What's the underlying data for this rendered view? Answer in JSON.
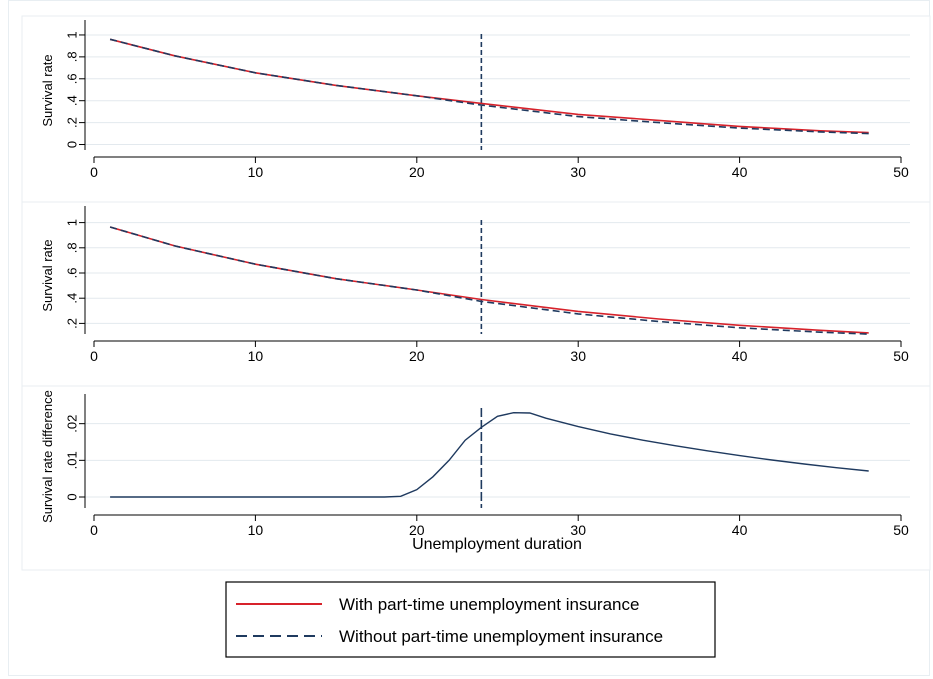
{
  "colors": {
    "with_series": "#d7222b",
    "without_series": "#1f3a5f",
    "vline": "#1f3a5f",
    "grid": "#e3e9ee",
    "panel_border": "#e8eef2"
  },
  "x_axis_title": "Unemployment duration",
  "legend": {
    "entries": [
      {
        "label": "With part-time unemployment insurance",
        "style": "solid",
        "color": "#d7222b"
      },
      {
        "label": "Without part-time unemployment insurance",
        "style": "dashed",
        "color": "#1f3a5f"
      }
    ]
  },
  "chart_data": [
    {
      "type": "line",
      "ylabel": "Survival rate",
      "xlim": [
        0,
        50
      ],
      "ylim": [
        -0.05,
        1.1
      ],
      "x_ticks": [
        0,
        10,
        20,
        30,
        40,
        50
      ],
      "y_ticks": [
        0,
        0.2,
        0.4,
        0.6,
        0.8,
        1
      ],
      "y_tick_labels": [
        "0",
        ".2",
        ".4",
        ".6",
        ".8",
        "1"
      ],
      "vline_x": 24,
      "x": [
        1,
        5,
        10,
        15,
        20,
        24,
        30,
        35,
        40,
        45,
        48
      ],
      "series": [
        {
          "name": "With part-time unemployment insurance",
          "values": [
            0.96,
            0.81,
            0.655,
            0.54,
            0.445,
            0.375,
            0.275,
            0.22,
            0.165,
            0.125,
            0.11
          ]
        },
        {
          "name": "Without part-time unemployment insurance",
          "values": [
            0.96,
            0.81,
            0.655,
            0.54,
            0.445,
            0.36,
            0.255,
            0.2,
            0.15,
            0.115,
            0.1
          ]
        }
      ],
      "grid": true
    },
    {
      "type": "line",
      "ylabel": "Survival rate",
      "xlim": [
        0,
        50
      ],
      "ylim": [
        0.1,
        1.1
      ],
      "x_ticks": [
        0,
        10,
        20,
        30,
        40,
        50
      ],
      "y_ticks": [
        0.2,
        0.4,
        0.6,
        0.8,
        1
      ],
      "y_tick_labels": [
        ".2",
        ".4",
        ".6",
        ".8",
        "1"
      ],
      "vline_x": 24,
      "x": [
        1,
        5,
        10,
        15,
        20,
        24,
        30,
        35,
        40,
        45,
        48
      ],
      "series": [
        {
          "name": "With part-time unemployment insurance",
          "values": [
            0.965,
            0.815,
            0.67,
            0.555,
            0.465,
            0.39,
            0.295,
            0.235,
            0.185,
            0.145,
            0.125
          ]
        },
        {
          "name": "Without part-time unemployment insurance",
          "values": [
            0.965,
            0.815,
            0.67,
            0.555,
            0.465,
            0.375,
            0.275,
            0.215,
            0.165,
            0.13,
            0.115
          ]
        }
      ],
      "grid": true
    },
    {
      "type": "line",
      "ylabel": "Survival rate difference",
      "xlim": [
        0,
        50
      ],
      "ylim": [
        -0.003,
        0.027
      ],
      "x_ticks": [
        0,
        10,
        20,
        30,
        40,
        50
      ],
      "y_ticks": [
        0,
        0.01,
        0.02
      ],
      "y_tick_labels": [
        "0",
        ".01",
        ".02"
      ],
      "vline_x": 24,
      "x": [
        1,
        5,
        10,
        15,
        18,
        19,
        20,
        21,
        22,
        23,
        24,
        25,
        26,
        27,
        28,
        30,
        32,
        34,
        36,
        38,
        40,
        42,
        44,
        46,
        48
      ],
      "series": [
        {
          "name": "",
          "values": [
            0,
            0,
            0,
            0,
            0,
            0.0002,
            0.002,
            0.0055,
            0.01,
            0.0155,
            0.019,
            0.022,
            0.023,
            0.0229,
            0.0215,
            0.0192,
            0.0172,
            0.0155,
            0.014,
            0.0126,
            0.0113,
            0.0101,
            0.009,
            0.008,
            0.0071
          ]
        }
      ],
      "grid": true
    }
  ]
}
